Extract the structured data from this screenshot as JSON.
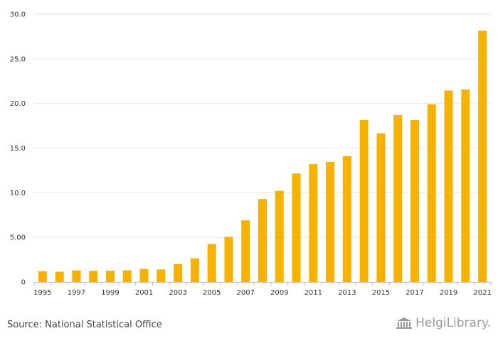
{
  "chart_data": {
    "type": "bar",
    "title": "",
    "xlabel": "",
    "ylabel": "",
    "ylim": [
      0,
      30
    ],
    "yticks": [
      0,
      5,
      10,
      15,
      20,
      25,
      30
    ],
    "ytick_labels": [
      "0",
      "5.00",
      "10.0",
      "15.0",
      "20.0",
      "25.0",
      "30.0"
    ],
    "categories": [
      "1995",
      "1996",
      "1997",
      "1998",
      "1999",
      "2000",
      "2001",
      "2002",
      "2003",
      "2004",
      "2005",
      "2006",
      "2007",
      "2008",
      "2009",
      "2010",
      "2011",
      "2012",
      "2013",
      "2014",
      "2015",
      "2016",
      "2017",
      "2018",
      "2019",
      "2020",
      "2021"
    ],
    "xtick_labels": [
      "1995",
      "",
      "1997",
      "",
      "1999",
      "",
      "2001",
      "",
      "2003",
      "",
      "2005",
      "",
      "2007",
      "",
      "2009",
      "",
      "2011",
      "",
      "2013",
      "",
      "2015",
      "",
      "2017",
      "",
      "2019",
      "",
      "2021"
    ],
    "values": [
      1.2,
      1.15,
      1.3,
      1.25,
      1.25,
      1.3,
      1.45,
      1.4,
      2.0,
      2.65,
      4.25,
      5.05,
      6.9,
      9.3,
      10.2,
      12.15,
      13.2,
      13.45,
      14.1,
      18.15,
      16.65,
      18.7,
      18.15,
      19.9,
      21.45,
      21.55,
      28.15
    ],
    "bar_color": "#F7B200",
    "grid": true
  },
  "footer": {
    "source": "Source: National Statistical Office",
    "logo_text": "HelgiLibrary."
  },
  "colors": {
    "grid": "#e6e6e6",
    "axis": "#bbbbbb",
    "logo": "#9a9a9a"
  }
}
